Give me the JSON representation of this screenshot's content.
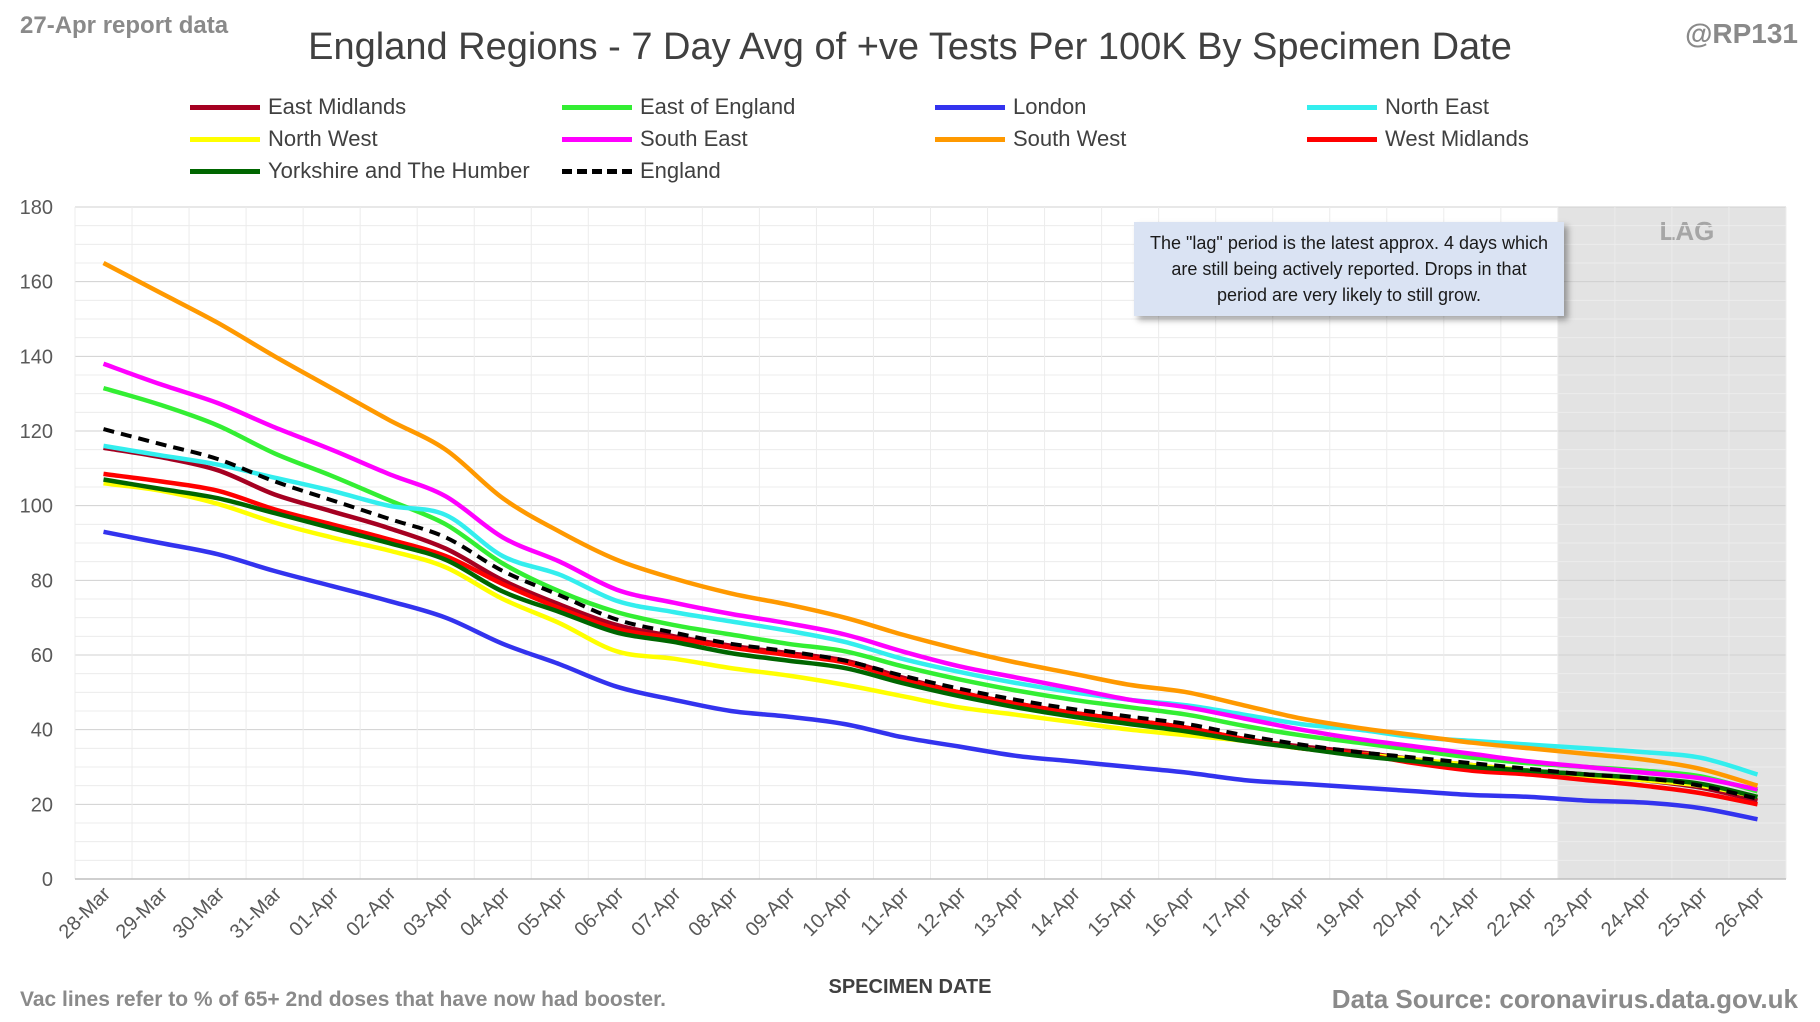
{
  "header": {
    "report_date": "27-Apr report data",
    "handle": "@RP131"
  },
  "footer": {
    "note": "Vac lines refer to % of 65+ 2nd doses that have now had booster.",
    "source": "Data Source: coronavirus.data.gov.uk"
  },
  "annotation": {
    "text": "The \"lag\" period is the latest approx. 4 days which are still being actively reported. Drops in that period are very likely to still grow.",
    "lag_label": "LAG"
  },
  "chart_data": {
    "type": "line",
    "title": "England Regions - 7 Day Avg of +ve Tests Per 100K By Specimen Date",
    "xlabel": "SPECIMEN DATE",
    "ylabel": "",
    "ylim": [
      0,
      180
    ],
    "yticks": [
      0,
      20,
      40,
      60,
      80,
      100,
      120,
      140,
      160,
      180
    ],
    "grid": true,
    "legend_position": "top",
    "lag_period": [
      "23-Apr",
      "26-Apr"
    ],
    "x": [
      "28-Mar",
      "29-Mar",
      "30-Mar",
      "31-Mar",
      "01-Apr",
      "02-Apr",
      "03-Apr",
      "04-Apr",
      "05-Apr",
      "06-Apr",
      "07-Apr",
      "08-Apr",
      "09-Apr",
      "10-Apr",
      "11-Apr",
      "12-Apr",
      "13-Apr",
      "14-Apr",
      "15-Apr",
      "16-Apr",
      "17-Apr",
      "18-Apr",
      "19-Apr",
      "20-Apr",
      "21-Apr",
      "22-Apr",
      "23-Apr",
      "24-Apr",
      "25-Apr",
      "26-Apr"
    ],
    "series": [
      {
        "name": "East Midlands",
        "color": "#a50021",
        "dashed": false,
        "values": [
          115.5,
          113,
          109.5,
          103,
          98.5,
          94,
          88.5,
          80,
          73.5,
          68,
          65,
          62.5,
          60.5,
          58.5,
          54,
          50,
          47,
          44.5,
          42.5,
          40.5,
          37.5,
          35.5,
          34,
          32,
          30.5,
          29,
          28,
          26.5,
          24.5,
          21
        ]
      },
      {
        "name": "East of England",
        "color": "#33ee33",
        "dashed": false,
        "values": [
          131.5,
          127,
          121.5,
          114,
          108,
          101.5,
          95,
          84.5,
          77,
          71.5,
          68,
          65.5,
          63,
          61,
          57,
          53.5,
          50.5,
          48,
          46,
          44,
          41,
          38.5,
          36.5,
          34.5,
          32.5,
          31,
          30,
          29,
          27.5,
          23.5
        ]
      },
      {
        "name": "London",
        "color": "#3333ee",
        "dashed": false,
        "values": [
          93,
          90,
          87,
          82.5,
          78.5,
          74.5,
          70,
          63,
          57.5,
          51.5,
          48,
          45,
          43.5,
          41.5,
          38,
          35.5,
          33,
          31.5,
          30,
          28.5,
          26.5,
          25.5,
          24.5,
          23.5,
          22.5,
          22,
          21,
          20.5,
          19,
          16
        ]
      },
      {
        "name": "North East",
        "color": "#33eeee",
        "dashed": false,
        "values": [
          116,
          113.5,
          111,
          107.5,
          104,
          100,
          97.5,
          86.5,
          81.5,
          74.5,
          71.5,
          69,
          66.5,
          63.5,
          59,
          55.5,
          52.5,
          50,
          48,
          46.5,
          44,
          41.5,
          40,
          38,
          37,
          36,
          35,
          34,
          32.5,
          28
        ]
      },
      {
        "name": "North West",
        "color": "#ffff00",
        "dashed": false,
        "values": [
          106,
          104,
          100.5,
          95.5,
          91.5,
          88,
          83.5,
          75,
          68.5,
          61,
          59,
          56.5,
          54.5,
          52,
          49,
          46,
          44,
          42,
          40,
          38.5,
          37,
          35,
          33.5,
          32,
          30.5,
          29,
          27.5,
          26.5,
          25,
          22
        ]
      },
      {
        "name": "South East",
        "color": "#ff00ff",
        "dashed": false,
        "values": [
          138,
          132.5,
          127.5,
          121,
          115,
          108.5,
          102.5,
          91.5,
          85,
          77.5,
          74,
          71,
          68.5,
          65.5,
          61,
          57,
          54,
          51,
          48,
          46,
          43,
          40,
          37.5,
          35.5,
          33.5,
          31.5,
          30,
          28.5,
          27,
          24
        ]
      },
      {
        "name": "South West",
        "color": "#ff9900",
        "dashed": false,
        "values": [
          165,
          157,
          149,
          140,
          131.5,
          123,
          115,
          102,
          93,
          85.5,
          80.5,
          76.5,
          73.5,
          70,
          65.5,
          61.5,
          58,
          55,
          52,
          50,
          46.5,
          43,
          40.5,
          38.5,
          36.5,
          35,
          33.5,
          32,
          29.5,
          25
        ]
      },
      {
        "name": "West Midlands",
        "color": "#ff0000",
        "dashed": false,
        "values": [
          108.5,
          106.5,
          104,
          99,
          95,
          91,
          86.5,
          79,
          72.5,
          67,
          64.5,
          62,
          60,
          58,
          53.5,
          50,
          47,
          44.5,
          42.5,
          40.5,
          37.5,
          35,
          33.5,
          31,
          29,
          28,
          26.5,
          25,
          23,
          20
        ]
      },
      {
        "name": "Yorkshire and The Humber",
        "color": "#006600",
        "dashed": false,
        "values": [
          107,
          104.5,
          102,
          98,
          94,
          90,
          85.5,
          77,
          71.5,
          66,
          63.5,
          60.5,
          58.5,
          56.5,
          52.5,
          49,
          46,
          43.5,
          41.5,
          39.5,
          37,
          35,
          33,
          31.5,
          30,
          29,
          28,
          27,
          25.5,
          22
        ]
      },
      {
        "name": "England",
        "color": "#000000",
        "dashed": true,
        "values": [
          120.5,
          116.5,
          112.5,
          106.5,
          101.5,
          96.5,
          91.5,
          82.5,
          76,
          69.5,
          66,
          63,
          61,
          58.5,
          54.5,
          51,
          48,
          45.5,
          43.5,
          41.5,
          38.5,
          36,
          34,
          32.5,
          31,
          29.5,
          28,
          27,
          25,
          21.5
        ]
      }
    ]
  }
}
